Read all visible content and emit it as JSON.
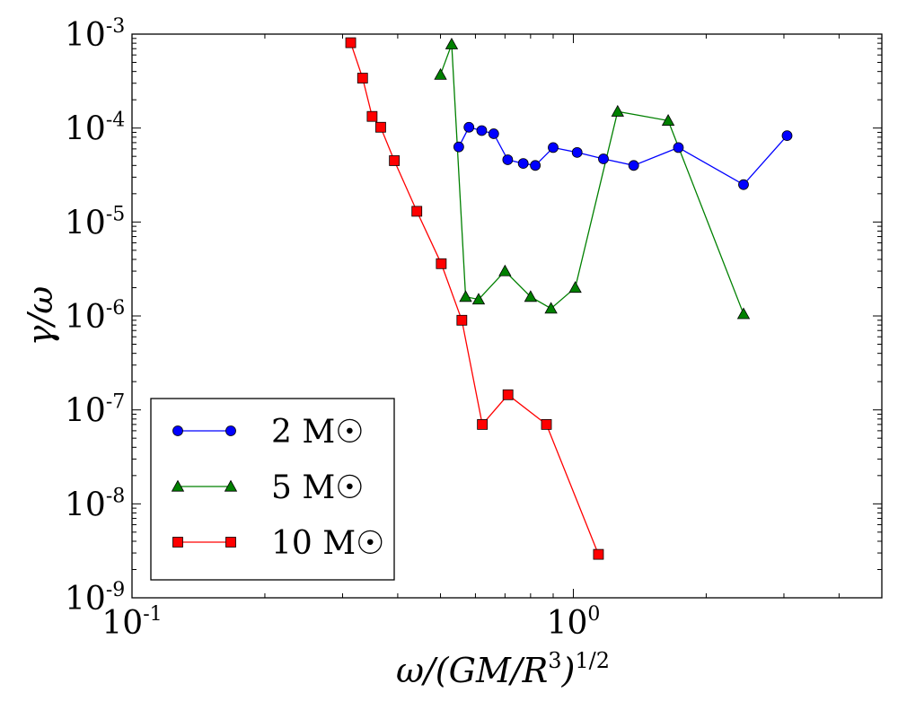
{
  "chart_data": {
    "type": "line",
    "xscale": "log",
    "yscale": "log",
    "xlim": [
      0.1,
      5.0
    ],
    "ylim": [
      1e-09,
      0.001
    ],
    "xlabel": "ω/(GM/R³)^1/2",
    "ylabel": "γ/ω",
    "x_ticks": [
      {
        "value": 0.1,
        "base": "10",
        "exp": "-1"
      },
      {
        "value": 1.0,
        "base": "10",
        "exp": "0"
      }
    ],
    "y_ticks": [
      {
        "value": 1e-09,
        "base": "10",
        "exp": "-9"
      },
      {
        "value": 1e-08,
        "base": "10",
        "exp": "-8"
      },
      {
        "value": 1e-07,
        "base": "10",
        "exp": "-7"
      },
      {
        "value": 1e-06,
        "base": "10",
        "exp": "-6"
      },
      {
        "value": 1e-05,
        "base": "10",
        "exp": "-5"
      },
      {
        "value": 0.0001,
        "base": "10",
        "exp": "-4"
      },
      {
        "value": 0.001,
        "base": "10",
        "exp": "-3"
      }
    ],
    "legend_position": "lower-left",
    "grid": false,
    "series": [
      {
        "name": "2 M☉",
        "color": "#0000ff",
        "marker": "circle",
        "points": [
          [
            0.55,
            6.3e-05
          ],
          [
            0.58,
            0.000102
          ],
          [
            0.62,
            9.4e-05
          ],
          [
            0.66,
            8.7e-05
          ],
          [
            0.71,
            4.6e-05
          ],
          [
            0.77,
            4.2e-05
          ],
          [
            0.82,
            4e-05
          ],
          [
            0.9,
            6.2e-05
          ],
          [
            1.02,
            5.5e-05
          ],
          [
            1.17,
            4.7e-05
          ],
          [
            1.37,
            4e-05
          ],
          [
            1.73,
            6.2e-05
          ],
          [
            2.43,
            2.5e-05
          ],
          [
            3.05,
            8.3e-05
          ]
        ]
      },
      {
        "name": "5 M☉",
        "color": "#008000",
        "marker": "triangle",
        "points": [
          [
            0.5,
            0.00037
          ],
          [
            0.53,
            0.00078
          ],
          [
            0.57,
            1.6e-06
          ],
          [
            0.61,
            1.5e-06
          ],
          [
            0.7,
            3e-06
          ],
          [
            0.8,
            1.6e-06
          ],
          [
            0.89,
            1.2e-06
          ],
          [
            1.01,
            2e-06
          ],
          [
            1.26,
            0.00015
          ],
          [
            1.64,
            0.00012
          ],
          [
            2.43,
            1.05e-06
          ]
        ]
      },
      {
        "name": "10 M☉",
        "color": "#ff0000",
        "marker": "square",
        "points": [
          [
            0.313,
            0.00081
          ],
          [
            0.333,
            0.00034
          ],
          [
            0.35,
            0.000133
          ],
          [
            0.366,
            0.000102
          ],
          [
            0.393,
            4.5e-05
          ],
          [
            0.442,
            1.3e-05
          ],
          [
            0.502,
            3.6e-06
          ],
          [
            0.559,
            9e-07
          ],
          [
            0.622,
            7e-08
          ],
          [
            0.711,
            1.45e-07
          ],
          [
            0.869,
            7e-08
          ],
          [
            1.14,
            2.9e-09
          ]
        ]
      }
    ]
  }
}
